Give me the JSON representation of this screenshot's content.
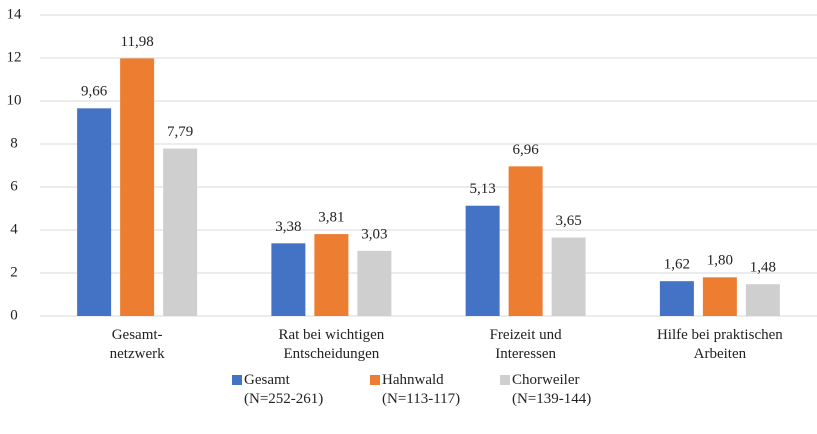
{
  "chart_data": {
    "type": "bar",
    "categories": [
      "Gesamt-\nnetzwerk",
      "Rat bei wichtigen\nEntscheidungen",
      "Freizeit und\nInteressen",
      "Hilfe bei praktischen\nArbeiten"
    ],
    "series": [
      {
        "name": "Gesamt\n(N=252-261)",
        "color": "#4472c4",
        "values": [
          9.66,
          3.38,
          5.13,
          1.62
        ],
        "value_labels": [
          "9,66",
          "3,38",
          "5,13",
          "1,62"
        ]
      },
      {
        "name": "Hahnwald\n(N=113-117)",
        "color": "#ed7d31",
        "values": [
          11.98,
          3.81,
          6.96,
          1.8
        ],
        "value_labels": [
          "11,98",
          "3,81",
          "6,96",
          "1,80"
        ]
      },
      {
        "name": "Chorweiler\n(N=139-144)",
        "color": "#cfcfcf",
        "values": [
          7.79,
          3.03,
          3.65,
          1.48
        ],
        "value_labels": [
          "7,79",
          "3,03",
          "3,65",
          "1,48"
        ]
      }
    ],
    "ylim": [
      0,
      14
    ],
    "yticks": [
      0,
      2,
      4,
      6,
      8,
      10,
      12,
      14
    ],
    "grid": true,
    "legend": "bottom"
  }
}
